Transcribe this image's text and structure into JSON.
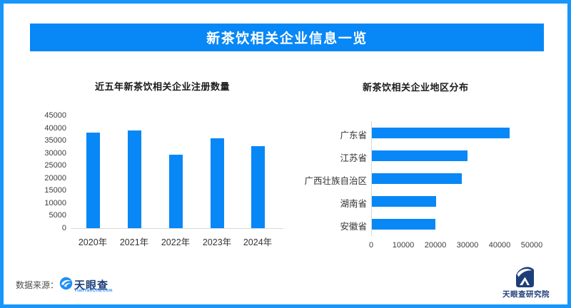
{
  "page": {
    "banner_title": "新茶饮相关企业信息一览",
    "colors": {
      "accent": "#0887f6",
      "border_blue": "#1796fb",
      "navy": "#1d3e78",
      "link_blue": "#2d8cf0"
    },
    "footer": {
      "source_label": "数据来源：",
      "logo_icon": "tianyancha-eye-icon",
      "logo_text": "天眼查",
      "logo_subtext": "TianYanCha.com",
      "research_logo_icon": "tianyancha-research-icon",
      "research_label": "天眼查研究院"
    }
  },
  "chart_data": [
    {
      "type": "bar",
      "orientation": "vertical",
      "title": "近五年新茶饮相关企业注册数量",
      "categories": [
        "2020年",
        "2021年",
        "2022年",
        "2023年",
        "2024年"
      ],
      "values": [
        38400,
        39100,
        29300,
        36000,
        33000
      ],
      "xlabel": "",
      "ylabel": "",
      "ylim": [
        0,
        45000
      ],
      "yticks": [
        0,
        5000,
        10000,
        15000,
        20000,
        25000,
        30000,
        35000,
        40000,
        45000
      ],
      "grid": false,
      "legend": "none",
      "bar_color": "#0887f6"
    },
    {
      "type": "bar",
      "orientation": "horizontal",
      "title": "新茶饮相关企业地区分布",
      "categories": [
        "广东省",
        "江苏省",
        "广西壮族自治区",
        "湖南省",
        "安徽省"
      ],
      "values": [
        42800,
        29800,
        27900,
        19900,
        19700
      ],
      "xlabel": "",
      "ylabel": "",
      "xlim": [
        0,
        50000
      ],
      "xticks": [
        0,
        10000,
        20000,
        30000,
        40000,
        50000
      ],
      "grid": false,
      "legend": "none",
      "bar_color": "#0887f6"
    }
  ]
}
